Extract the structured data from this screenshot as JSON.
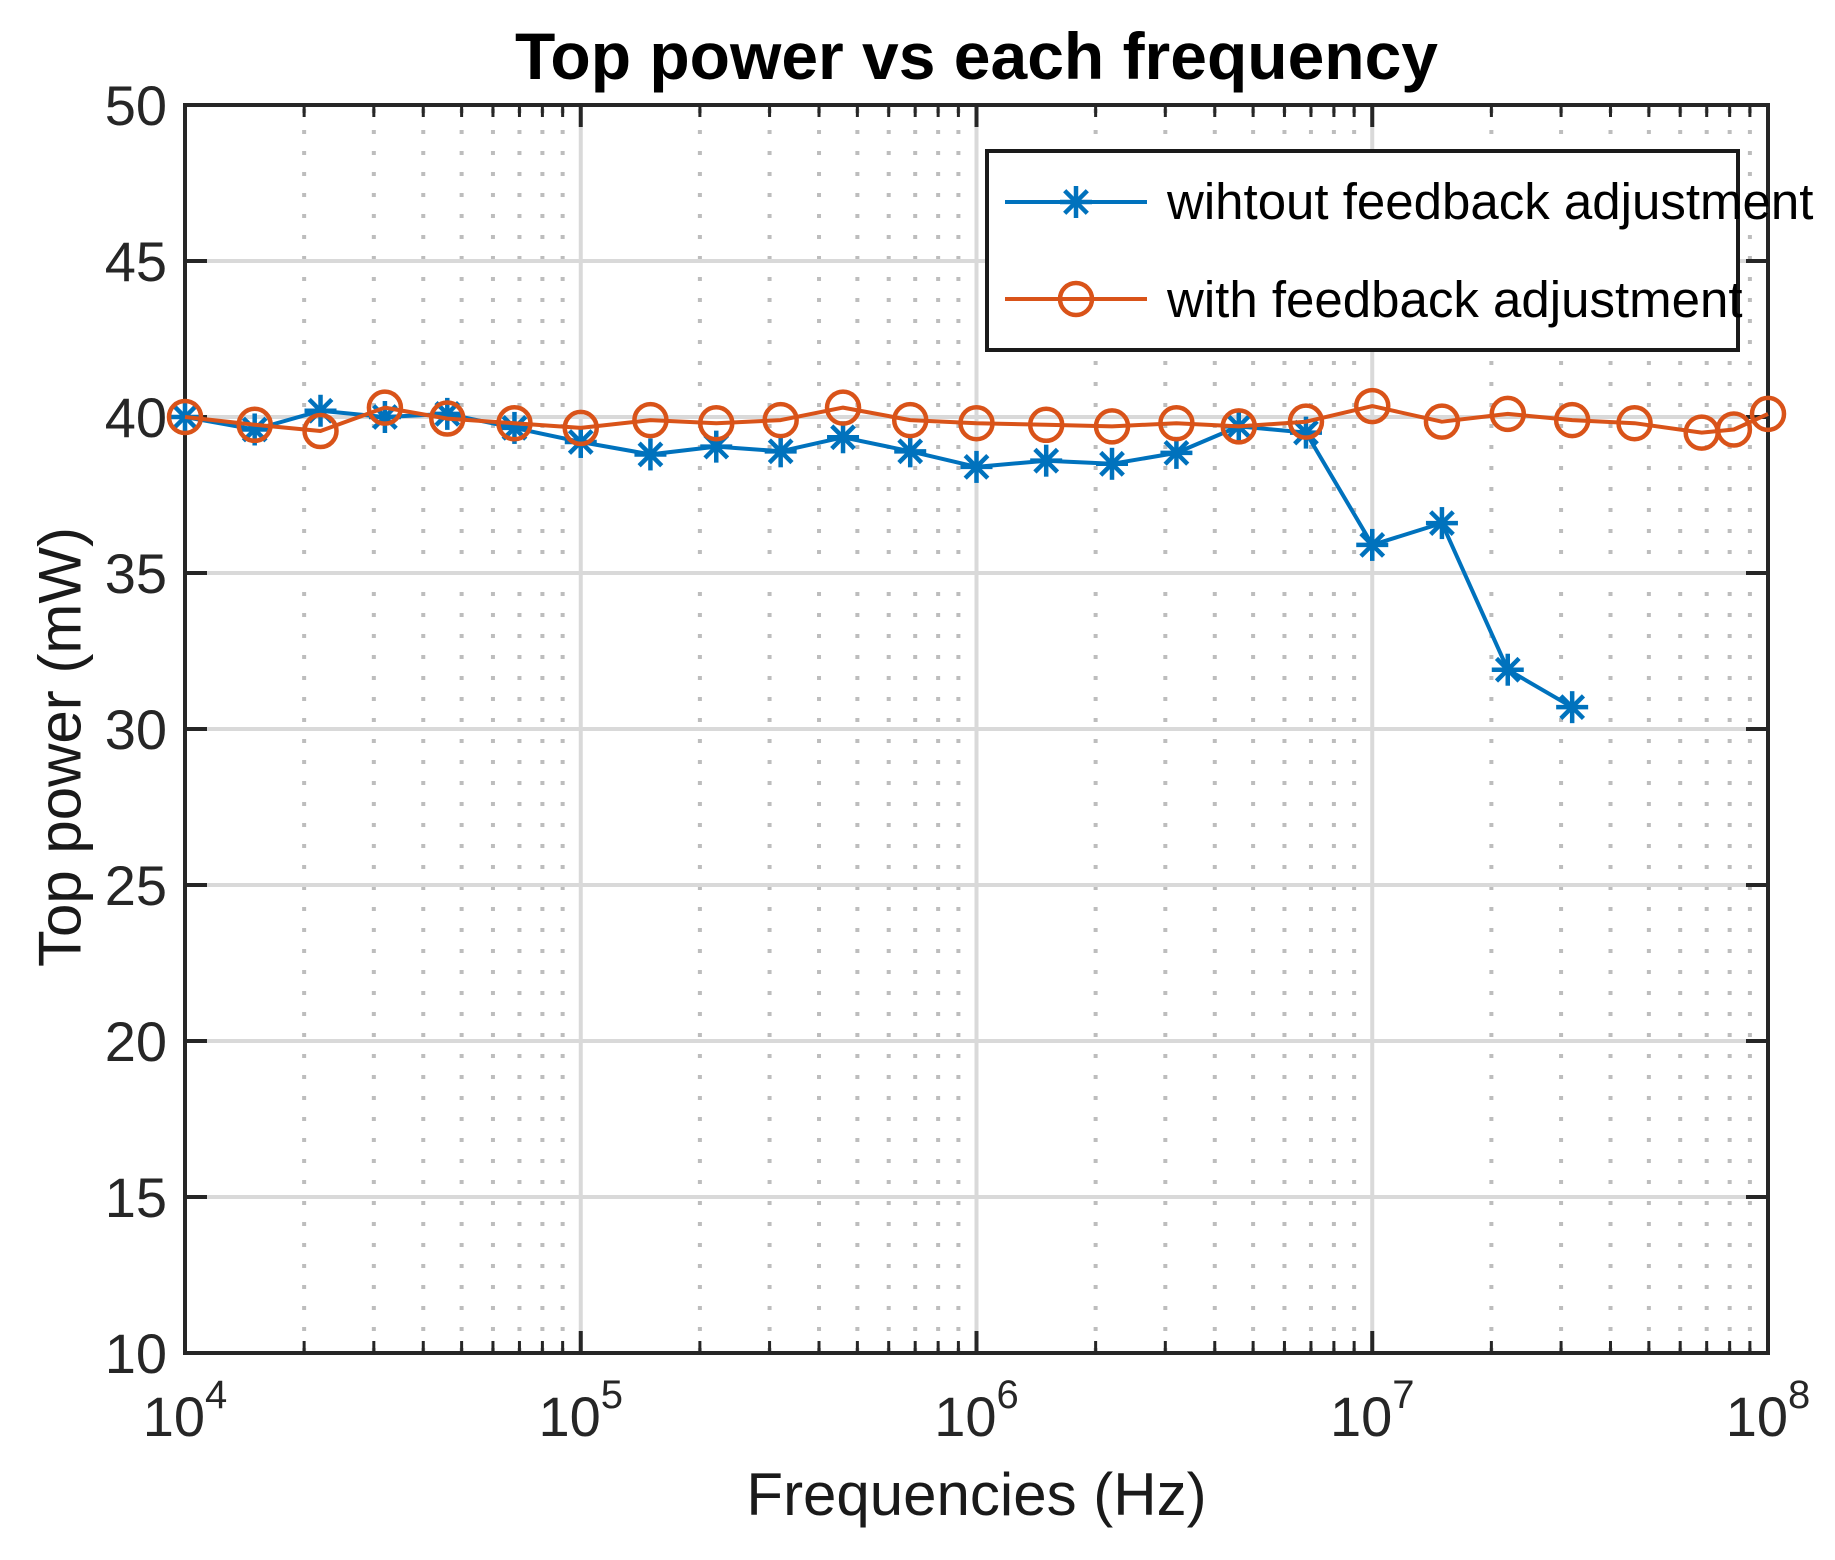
{
  "figure": {
    "background": "#ffffff"
  },
  "chart_data": {
    "type": "line",
    "title": "Top power vs each frequency",
    "xlabel": "Frequencies (Hz)",
    "ylabel": "Top power (mW)",
    "x_scale": "log",
    "xlim": [
      10000,
      100000000
    ],
    "ylim": [
      10,
      50
    ],
    "y_ticks": [
      10,
      15,
      20,
      25,
      30,
      35,
      40,
      45,
      50
    ],
    "x_tick_exponents": [
      4,
      5,
      6,
      7,
      8
    ],
    "grid": {
      "major": true,
      "minor": true,
      "major_color": "#d9d9d9",
      "minor_color": "#bdbdbd"
    },
    "axis_color": "#262626",
    "tick_label_color": "#262626",
    "legend": {
      "position": "northeast",
      "border_color": "#1a1a1a"
    },
    "series": [
      {
        "name": "wihtout feedback adjustment",
        "color": "#0072BD",
        "marker": "asterisk",
        "x": [
          10000,
          15000,
          22000,
          32000,
          46000,
          68000,
          100000,
          150000,
          220000,
          320000,
          460000,
          680000,
          1000000,
          1500000,
          2200000,
          3200000,
          4600000,
          6800000,
          10000000,
          15000000,
          22000000,
          32000000
        ],
        "y": [
          40.0,
          39.6,
          40.2,
          40.0,
          40.1,
          39.65,
          39.2,
          38.8,
          39.05,
          38.9,
          39.35,
          38.9,
          38.4,
          38.6,
          38.5,
          38.85,
          39.7,
          39.5,
          35.9,
          36.6,
          31.9,
          30.7
        ]
      },
      {
        "name": "with feedback adjustment",
        "color": "#D95319",
        "marker": "circle",
        "x": [
          10000,
          15000,
          22000,
          32000,
          46000,
          68000,
          100000,
          150000,
          220000,
          320000,
          460000,
          680000,
          1000000,
          1500000,
          2200000,
          3200000,
          4600000,
          6800000,
          10000000,
          15000000,
          22000000,
          32000000,
          46000000,
          68000000,
          82000000,
          100000000
        ],
        "y": [
          40.0,
          39.75,
          39.55,
          40.3,
          39.95,
          39.8,
          39.65,
          39.9,
          39.8,
          39.9,
          40.3,
          39.9,
          39.8,
          39.75,
          39.7,
          39.8,
          39.7,
          39.85,
          40.35,
          39.85,
          40.1,
          39.9,
          39.8,
          39.5,
          39.6,
          40.1
        ]
      }
    ]
  }
}
